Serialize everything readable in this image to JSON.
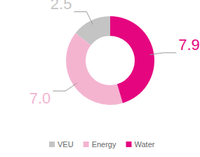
{
  "chart_data": {
    "type": "donut",
    "categories": [
      "VEU",
      "Energy",
      "Water"
    ],
    "values": [
      2.5,
      7.0,
      7.9
    ],
    "value_labels": [
      "2.5",
      "7.0",
      "7.9"
    ],
    "colors": [
      "#c4c4c4",
      "#f4b4d0",
      "#e5067f"
    ],
    "data_labels": true,
    "legend": "bottom"
  }
}
